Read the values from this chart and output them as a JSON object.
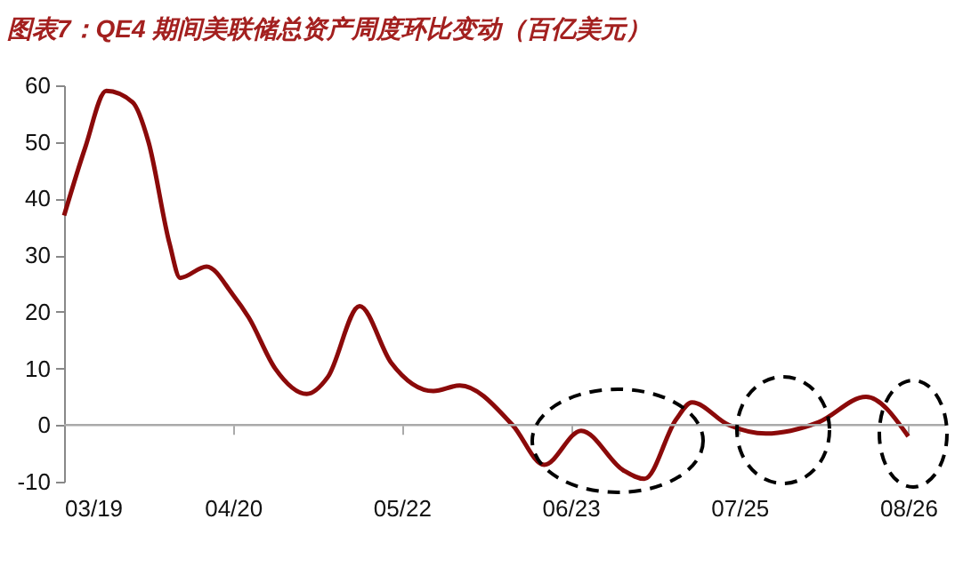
{
  "chart_data": {
    "type": "line",
    "title": "图表7：QE4 期间美联储总资产周度环比变动（百亿美元）",
    "x": [
      "--03-19",
      "--03-23",
      "--03-27",
      "--04-01",
      "--04-04",
      "--04-08",
      "--04-10",
      "--04-15",
      "--04-20",
      "--04-23",
      "--04-28",
      "--05-04",
      "--05-08",
      "--05-14",
      "--05-20",
      "--05-28",
      "--06-02",
      "--06-12",
      "--06-18",
      "--06-25",
      "--07-03",
      "--07-07",
      "--07-13",
      "--07-16",
      "--07-23",
      "--07-30",
      "--08-09",
      "--08-18",
      "--08-26"
    ],
    "series": [
      {
        "color": "#8b0a0a",
        "values": [
          37,
          49,
          59,
          57,
          50,
          32,
          26,
          28,
          23,
          19,
          10,
          5.5,
          8.5,
          21,
          11,
          6,
          7,
          0,
          -7,
          -1,
          -8,
          -9.5,
          1,
          4,
          0,
          -1.5,
          0.5,
          5,
          -2
        ]
      }
    ],
    "xlim": [
      "--03-19",
      "--09-02"
    ],
    "xticks": [
      {
        "value": "--03-19",
        "label": "03/19"
      },
      {
        "value": "--04-20",
        "label": "04/20"
      },
      {
        "value": "--05-22",
        "label": "05/22"
      },
      {
        "value": "--06-23",
        "label": "06/23"
      },
      {
        "value": "--07-25",
        "label": "07/25"
      },
      {
        "value": "--08-26",
        "label": "08/26"
      }
    ],
    "ylim": [
      -10,
      60
    ],
    "yticks": [
      -10,
      0,
      10,
      20,
      30,
      40,
      50,
      60
    ],
    "ref_lines": [
      {
        "axis": "y",
        "value": 0,
        "color": "#aaaaaa"
      }
    ],
    "grid": false,
    "marker": "none",
    "line_style": "solid"
  }
}
